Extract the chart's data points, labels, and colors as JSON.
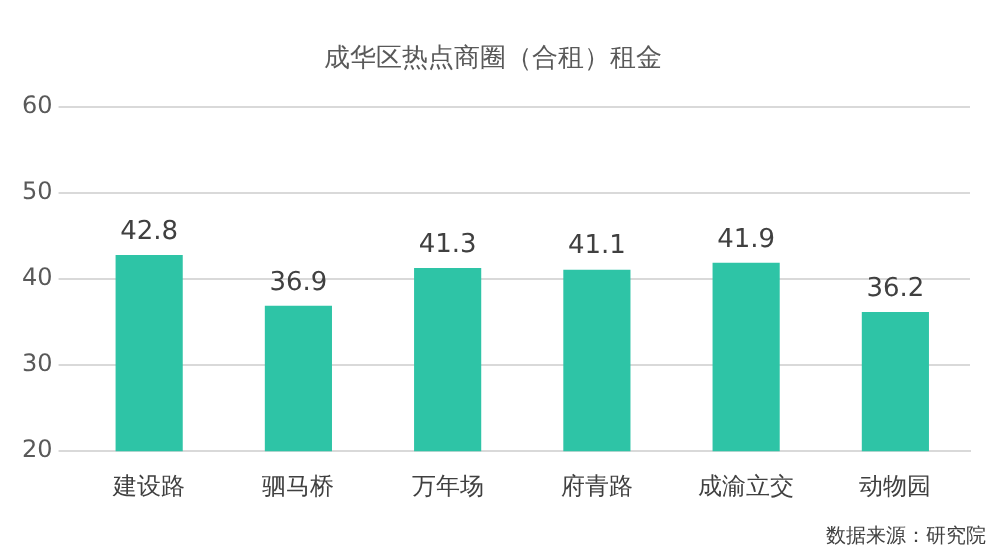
{
  "chart_data": {
    "type": "bar",
    "title": "成华区热点商圈（合租）租金",
    "categories": [
      "建设路",
      "驷马桥",
      "万年场",
      "府青路",
      "成渝立交",
      "动物园"
    ],
    "values": [
      42.8,
      36.9,
      41.3,
      41.1,
      41.9,
      36.2
    ],
    "color": "#2ec4a6",
    "ylim": [
      20,
      60
    ],
    "yticks": [
      20,
      30,
      40,
      50,
      60
    ],
    "grid": "y",
    "data_labels": true,
    "annotations": [
      "数据来源：研究院"
    ]
  }
}
